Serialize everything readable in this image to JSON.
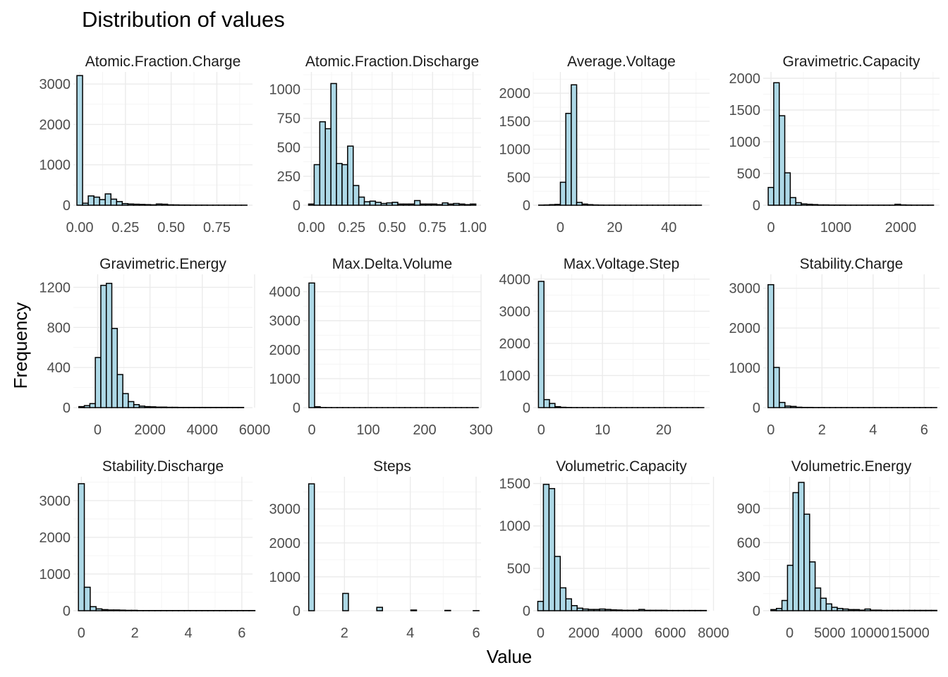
{
  "title": "Distribution of values",
  "xlabel": "Value",
  "ylabel": "Frequency",
  "colors": {
    "bar_fill": "#add8e6",
    "bar_stroke": "#000000"
  },
  "chart_data": [
    {
      "type": "bar",
      "title": "Atomic.Fraction.Charge",
      "xlim": [
        -0.035,
        0.945
      ],
      "ylim": [
        0,
        3300
      ],
      "xticks": [
        0,
        0.25,
        0.5,
        0.75
      ],
      "xtick_labels": [
        "0.00",
        "0.25",
        "0.50",
        "0.75"
      ],
      "yticks": [
        0,
        1000,
        2000,
        3000
      ],
      "ytick_labels": [
        "0",
        "1000",
        "2000",
        "3000"
      ],
      "bin_start": -0.0155,
      "bin_width": 0.031,
      "counts": [
        3210,
        50,
        230,
        200,
        140,
        280,
        150,
        90,
        40,
        30,
        25,
        20,
        15,
        10,
        30,
        25,
        10,
        8,
        5,
        5,
        3,
        3,
        3,
        2,
        2,
        2,
        2,
        2,
        2,
        2
      ]
    },
    {
      "type": "bar",
      "title": "Atomic.Fraction.Discharge",
      "xlim": [
        -0.05,
        1.05
      ],
      "ylim": [
        0,
        1150
      ],
      "xticks": [
        0,
        0.25,
        0.5,
        0.75,
        1.0
      ],
      "xtick_labels": [
        "0.00",
        "0.25",
        "0.50",
        "0.75",
        "1.00"
      ],
      "yticks": [
        0,
        250,
        500,
        750,
        1000
      ],
      "ytick_labels": [
        "0",
        "250",
        "500",
        "750",
        "1000"
      ],
      "bin_start": -0.0172,
      "bin_width": 0.0345,
      "counts": [
        10,
        350,
        720,
        660,
        1050,
        360,
        350,
        510,
        170,
        70,
        30,
        35,
        25,
        15,
        20,
        25,
        10,
        10,
        10,
        40,
        10,
        10,
        10,
        5,
        20,
        10,
        15,
        10,
        5,
        10
      ]
    },
    {
      "type": "bar",
      "title": "Average.Voltage",
      "xlim": [
        -10,
        55
      ],
      "ylim": [
        0,
        2380
      ],
      "xticks": [
        0,
        20,
        40
      ],
      "xtick_labels": [
        "0",
        "20",
        "40"
      ],
      "yticks": [
        0,
        500,
        1000,
        1500,
        2000
      ],
      "ytick_labels": [
        "0",
        "500",
        "1000",
        "1500",
        "2000"
      ],
      "bin_start": -8.0,
      "bin_width": 2.0,
      "counts": [
        3,
        5,
        10,
        15,
        410,
        1640,
        2150,
        50,
        20,
        10,
        5,
        3,
        2,
        2,
        2,
        1,
        1,
        1,
        1,
        1,
        1,
        1,
        1,
        1,
        1,
        1,
        1,
        1,
        1,
        1
      ]
    },
    {
      "type": "bar",
      "title": "Gravimetric.Capacity",
      "xlim": [
        -120,
        2600
      ],
      "ylim": [
        0,
        2100
      ],
      "xticks": [
        0,
        1000,
        2000
      ],
      "xtick_labels": [
        "0",
        "1000",
        "2000"
      ],
      "yticks": [
        0,
        500,
        1000,
        1500,
        2000
      ],
      "ytick_labels": [
        "0",
        "500",
        "1000",
        "1500",
        "2000"
      ],
      "bin_start": -42.5,
      "bin_width": 85,
      "counts": [
        280,
        1930,
        1410,
        510,
        120,
        40,
        20,
        15,
        10,
        5,
        5,
        3,
        3,
        3,
        2,
        2,
        2,
        2,
        2,
        2,
        2,
        2,
        2,
        15,
        5,
        3,
        2,
        2,
        2,
        2
      ]
    },
    {
      "type": "bar",
      "title": "Gravimetric.Energy",
      "xlim": [
        -930,
        5920
      ],
      "ylim": [
        0,
        1330
      ],
      "xticks": [
        0,
        2000,
        4000,
        6000
      ],
      "xtick_labels": [
        "0",
        "2000",
        "4000",
        "6000"
      ],
      "yticks": [
        0,
        400,
        800,
        1200
      ],
      "ytick_labels": [
        "0",
        "400",
        "800",
        "1200"
      ],
      "bin_start": -720,
      "bin_width": 210,
      "counts": [
        10,
        20,
        40,
        500,
        1220,
        1240,
        790,
        330,
        140,
        60,
        30,
        15,
        10,
        8,
        5,
        5,
        3,
        3,
        2,
        2,
        2,
        2,
        2,
        2,
        2,
        2,
        2,
        2,
        2,
        2
      ]
    },
    {
      "type": "bar",
      "title": "Max.Delta.Volume",
      "xlim": [
        -15,
        300
      ],
      "ylim": [
        0,
        4600
      ],
      "xticks": [
        0,
        100,
        200,
        300
      ],
      "xtick_labels": [
        "0",
        "100",
        "200",
        "300"
      ],
      "yticks": [
        0,
        1000,
        2000,
        3000,
        4000
      ],
      "ytick_labels": [
        "0",
        "1000",
        "2000",
        "3000",
        "4000"
      ],
      "bin_start": -5,
      "bin_width": 10,
      "counts": [
        4300,
        30,
        5,
        3,
        2,
        2,
        2,
        1,
        1,
        1,
        1,
        1,
        1,
        1,
        1,
        1,
        1,
        1,
        1,
        1,
        1,
        1,
        1,
        1,
        1,
        1,
        1,
        1,
        1,
        1
      ]
    },
    {
      "type": "bar",
      "title": "Max.Voltage.Step",
      "xlim": [
        -1.3,
        27.5
      ],
      "ylim": [
        0,
        4150
      ],
      "xticks": [
        0,
        10,
        20
      ],
      "xtick_labels": [
        "0",
        "10",
        "20"
      ],
      "yticks": [
        0,
        1000,
        2000,
        3000,
        4000
      ],
      "ytick_labels": [
        "0",
        "1000",
        "2000",
        "3000",
        "4000"
      ],
      "bin_start": -0.45,
      "bin_width": 0.9,
      "counts": [
        3930,
        250,
        130,
        30,
        10,
        5,
        3,
        2,
        2,
        1,
        1,
        1,
        1,
        1,
        1,
        1,
        1,
        1,
        1,
        1,
        1,
        1,
        1,
        1,
        1,
        1,
        1,
        1,
        1,
        1
      ]
    },
    {
      "type": "bar",
      "title": "Stability.Charge",
      "xlim": [
        -0.3,
        6.6
      ],
      "ylim": [
        0,
        3350
      ],
      "xticks": [
        0,
        2,
        4,
        6
      ],
      "xtick_labels": [
        "0",
        "2",
        "4",
        "6"
      ],
      "yticks": [
        0,
        1000,
        2000,
        3000
      ],
      "ytick_labels": [
        "0",
        "1000",
        "2000",
        "3000"
      ],
      "bin_start": -0.11,
      "bin_width": 0.22,
      "counts": [
        3090,
        1010,
        130,
        40,
        30,
        10,
        5,
        5,
        3,
        3,
        2,
        2,
        2,
        2,
        2,
        2,
        2,
        2,
        2,
        2,
        2,
        2,
        2,
        2,
        2,
        2,
        2,
        2,
        2,
        2
      ]
    },
    {
      "type": "bar",
      "title": "Stability.Discharge",
      "xlim": [
        -0.3,
        6.4
      ],
      "ylim": [
        0,
        3650
      ],
      "xticks": [
        0,
        2,
        4,
        6
      ],
      "xtick_labels": [
        "0",
        "2",
        "4",
        "6"
      ],
      "yticks": [
        0,
        1000,
        2000,
        3000
      ],
      "ytick_labels": [
        "0",
        "1000",
        "2000",
        "3000"
      ],
      "bin_start": -0.11,
      "bin_width": 0.22,
      "counts": [
        3460,
        640,
        110,
        50,
        30,
        20,
        20,
        15,
        10,
        10,
        5,
        5,
        5,
        5,
        5,
        5,
        5,
        5,
        5,
        5,
        5,
        5,
        5,
        5,
        5,
        5,
        5,
        5,
        5,
        5
      ]
    },
    {
      "type": "bar",
      "title": "Steps",
      "xlim": [
        0.75,
        6.15
      ],
      "ylim": [
        0,
        3950
      ],
      "xticks": [
        2,
        4,
        6
      ],
      "xtick_labels": [
        "2",
        "4",
        "6"
      ],
      "yticks": [
        0,
        1000,
        2000,
        3000
      ],
      "ytick_labels": [
        "0",
        "1000",
        "2000",
        "3000"
      ],
      "bin_start": 0.9138,
      "bin_width": 0.1724,
      "counts": [
        3740,
        0,
        0,
        0,
        0,
        0,
        510,
        0,
        0,
        0,
        0,
        0,
        100,
        0,
        0,
        0,
        0,
        0,
        20,
        0,
        0,
        0,
        0,
        0,
        10,
        0,
        0,
        0,
        0,
        2
      ]
    },
    {
      "type": "bar",
      "title": "Volumetric.Capacity",
      "xlim": [
        -340,
        7820
      ],
      "ylim": [
        0,
        1580
      ],
      "xticks": [
        0,
        2000,
        4000,
        6000,
        8000
      ],
      "xtick_labels": [
        "0",
        "2000",
        "4000",
        "6000",
        "8000"
      ],
      "yticks": [
        0,
        500,
        1000,
        1500
      ],
      "ytick_labels": [
        "0",
        "500",
        "1000",
        "1500"
      ],
      "bin_start": -130,
      "bin_width": 260,
      "counts": [
        110,
        1490,
        1440,
        640,
        270,
        140,
        60,
        30,
        20,
        15,
        15,
        20,
        15,
        10,
        8,
        5,
        5,
        5,
        15,
        5,
        5,
        5,
        5,
        3,
        3,
        3,
        3,
        3,
        3,
        3
      ]
    },
    {
      "type": "bar",
      "title": "Volumetric.Energy",
      "xlim": [
        -3300,
        18700
      ],
      "ylim": [
        0,
        1180
      ],
      "xticks": [
        0,
        5000,
        10000,
        15000
      ],
      "xtick_labels": [
        "0",
        "5000",
        "10000",
        "15000"
      ],
      "yticks": [
        0,
        300,
        600,
        900
      ],
      "ytick_labels": [
        "0",
        "300",
        "600",
        "900"
      ],
      "bin_start": -2340,
      "bin_width": 690,
      "counts": [
        10,
        20,
        90,
        400,
        1040,
        1130,
        850,
        430,
        200,
        110,
        60,
        30,
        20,
        15,
        10,
        10,
        5,
        15,
        5,
        5,
        3,
        3,
        3,
        3,
        3,
        3,
        3,
        3,
        3,
        3
      ]
    }
  ]
}
